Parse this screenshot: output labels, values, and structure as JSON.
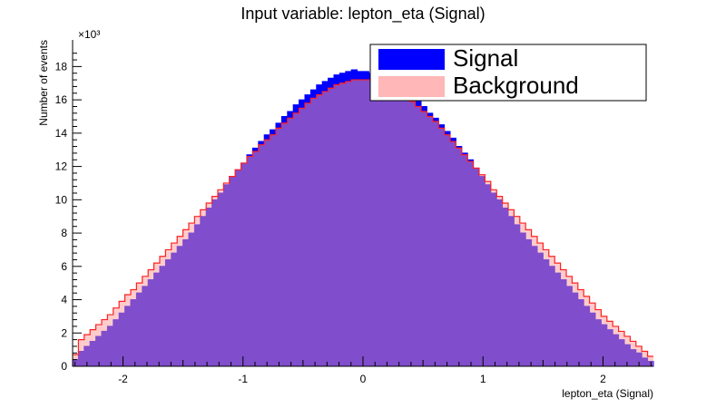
{
  "chart_data": {
    "type": "histogram",
    "title": "Input variable: lepton_eta (Signal)",
    "xlabel": "lepton_eta (Signal)",
    "ylabel": "Number of events",
    "y_multiplier": "×10³",
    "xlim": [
      -2.42,
      2.42
    ],
    "ylim": [
      0,
      19.6
    ],
    "x_ticks": [
      -2,
      -1,
      0,
      1,
      2
    ],
    "y_ticks": [
      0,
      2,
      4,
      6,
      8,
      10,
      12,
      14,
      16,
      18
    ],
    "bins": 100,
    "legend_position": "top-right",
    "series": [
      {
        "name": "Signal",
        "color": "#0000ff",
        "peak_value": 17.8,
        "values": [
          0.4,
          0.9,
          1.2,
          1.5,
          1.8,
          2.1,
          2.4,
          2.8,
          3.2,
          3.6,
          4.0,
          4.4,
          4.8,
          5.2,
          5.6,
          6.0,
          6.4,
          6.8,
          7.2,
          7.6,
          8.0,
          8.5,
          9.0,
          9.5,
          10.0,
          10.4,
          10.9,
          11.4,
          11.8,
          12.2,
          12.7,
          13.1,
          13.5,
          13.9,
          14.2,
          14.6,
          15.0,
          15.3,
          15.7,
          16.0,
          16.3,
          16.6,
          16.9,
          17.1,
          17.3,
          17.5,
          17.6,
          17.7,
          17.8,
          17.7,
          17.7,
          17.6,
          17.5,
          17.4,
          17.2,
          17.0,
          16.8,
          16.5,
          16.2,
          15.9,
          15.6,
          15.2,
          14.9,
          14.5,
          14.1,
          13.7,
          13.2,
          12.8,
          12.4,
          11.9,
          11.4,
          10.9,
          10.4,
          10.0,
          9.5,
          9.0,
          8.5,
          8.0,
          7.6,
          7.2,
          6.8,
          6.4,
          6.0,
          5.6,
          5.2,
          4.8,
          4.4,
          4.0,
          3.6,
          3.2,
          2.8,
          2.5,
          2.2,
          1.9,
          1.6,
          1.3,
          1.0,
          0.8,
          0.5,
          0.3
        ]
      },
      {
        "name": "Background",
        "color": "#ff9999",
        "peak_value": 17.2,
        "values": [
          0.7,
          1.6,
          1.9,
          2.2,
          2.5,
          2.8,
          3.1,
          3.5,
          3.9,
          4.3,
          4.6,
          5.0,
          5.4,
          5.8,
          6.2,
          6.6,
          7.0,
          7.4,
          7.8,
          8.2,
          8.6,
          9.0,
          9.4,
          9.8,
          10.2,
          10.6,
          11.0,
          11.4,
          11.8,
          12.2,
          12.6,
          12.9,
          13.3,
          13.6,
          13.9,
          14.3,
          14.6,
          14.9,
          15.2,
          15.5,
          15.8,
          16.1,
          16.3,
          16.5,
          16.7,
          16.9,
          17.0,
          17.1,
          17.2,
          17.2,
          17.2,
          17.2,
          17.1,
          17.0,
          16.8,
          16.6,
          16.4,
          16.2,
          15.9,
          15.6,
          15.3,
          15.0,
          14.7,
          14.3,
          13.9,
          13.5,
          13.1,
          12.7,
          12.3,
          11.9,
          11.5,
          11.1,
          10.6,
          10.2,
          9.8,
          9.4,
          9.0,
          8.6,
          8.2,
          7.8,
          7.4,
          7.0,
          6.6,
          6.2,
          5.8,
          5.4,
          5.0,
          4.6,
          4.2,
          3.8,
          3.4,
          3.0,
          2.7,
          2.4,
          2.1,
          1.8,
          1.5,
          1.2,
          0.9,
          0.6
        ]
      }
    ]
  }
}
